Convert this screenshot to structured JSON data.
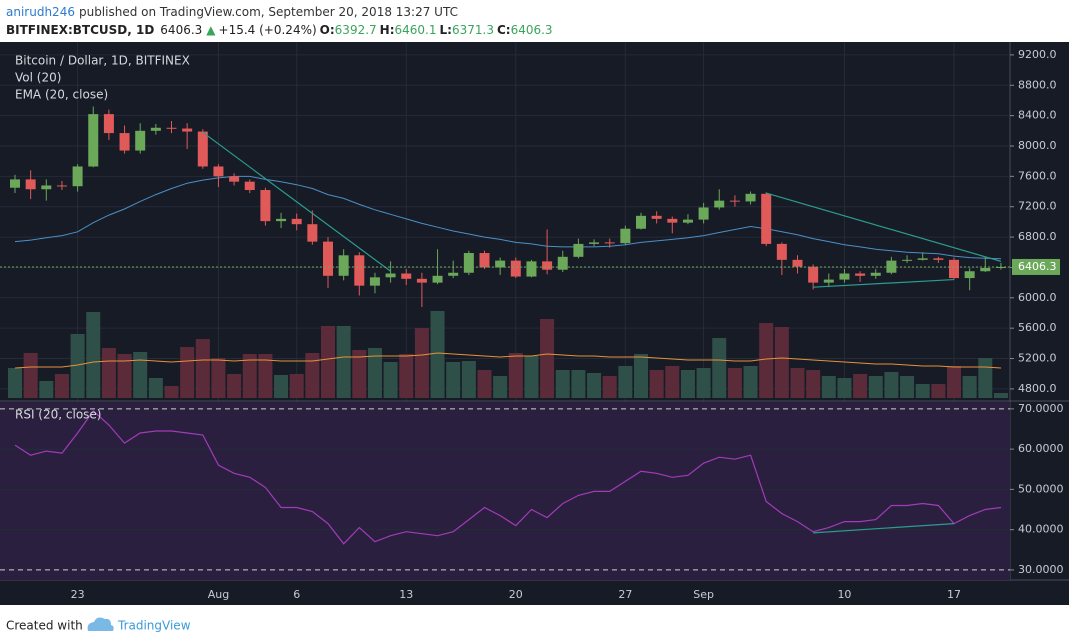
{
  "header": {
    "author": "anirudh246",
    "published": "published on TradingView.com, September 20, 2018 13:27 UTC",
    "symbol": "BITFINEX:BTCUSD, 1D",
    "last": "6406.3",
    "arrow": "▲",
    "change": "+15.4 (+0.24%)",
    "ohlc": [
      {
        "label": "O:",
        "value": "6392.7"
      },
      {
        "label": "H:",
        "value": "6460.1"
      },
      {
        "label": "L:",
        "value": "6371.3"
      },
      {
        "label": "C:",
        "value": "6406.3"
      }
    ]
  },
  "footer": {
    "created": "Created with",
    "brand": "TradingView"
  },
  "chart_data": [
    {
      "type": "candlestick",
      "title": "Bitcoin / Dollar, 1D, BITFINEX",
      "categories": [
        null,
        null,
        null,
        null,
        "23",
        null,
        null,
        null,
        null,
        null,
        null,
        null,
        null,
        "Aug",
        null,
        null,
        null,
        null,
        "6",
        null,
        null,
        null,
        null,
        null,
        null,
        "13",
        null,
        null,
        null,
        null,
        null,
        null,
        "20",
        null,
        null,
        null,
        null,
        null,
        null,
        "27",
        null,
        null,
        null,
        null,
        "Sep",
        null,
        null,
        null,
        null,
        null,
        null,
        null,
        null,
        "10",
        null,
        null,
        null,
        null,
        null,
        null,
        "17",
        null,
        null,
        null
      ],
      "open": [
        7450,
        7560,
        7430,
        7480,
        7470,
        7730,
        8420,
        8170,
        7940,
        8200,
        8240,
        8230,
        8190,
        7730,
        7600,
        7530,
        7420,
        7010,
        7040,
        6970,
        6740,
        6290,
        6560,
        6160,
        6270,
        6320,
        6250,
        6200,
        6290,
        6330,
        6590,
        6400,
        6490,
        6280,
        6480,
        6370,
        6540,
        6710,
        6730,
        6720,
        6910,
        7080,
        7040,
        6990,
        7030,
        7190,
        7280,
        7270,
        7370,
        6710,
        6500,
        6410,
        6200,
        6240,
        6320,
        6290,
        6330,
        6490,
        6500,
        6520,
        6500,
        6260,
        6350,
        6392.7
      ],
      "high": [
        7620,
        7680,
        7560,
        7540,
        7760,
        8520,
        8480,
        8270,
        8300,
        8290,
        8330,
        8300,
        8220,
        7760,
        7640,
        7560,
        7450,
        7120,
        7110,
        7150,
        6800,
        6640,
        6600,
        6330,
        6480,
        6380,
        6330,
        6640,
        6490,
        6620,
        6620,
        6530,
        6530,
        6500,
        6900,
        6620,
        6780,
        6770,
        6780,
        6950,
        7120,
        7140,
        7070,
        7100,
        7250,
        7430,
        7350,
        7400,
        7390,
        6730,
        6560,
        6440,
        6320,
        6380,
        6350,
        6380,
        6540,
        6560,
        6600,
        6540,
        6530,
        6390,
        6540,
        6460.1
      ],
      "low": [
        7380,
        7300,
        7280,
        7420,
        7400,
        7720,
        8080,
        7900,
        7900,
        8150,
        8170,
        7960,
        7700,
        7460,
        7480,
        7380,
        6950,
        6920,
        6890,
        6700,
        6130,
        6230,
        6030,
        6060,
        6200,
        6170,
        5880,
        6180,
        6260,
        6300,
        6380,
        6300,
        6260,
        6270,
        6310,
        6340,
        6520,
        6680,
        6660,
        6700,
        6900,
        6980,
        6850,
        6970,
        6980,
        7160,
        7200,
        7230,
        6680,
        6300,
        6320,
        6110,
        6140,
        6200,
        6210,
        6250,
        6310,
        6460,
        6490,
        6460,
        6240,
        6100,
        6340,
        6371.3
      ],
      "close": [
        7560,
        7430,
        7480,
        7470,
        7730,
        8420,
        8170,
        7940,
        8200,
        8240,
        8230,
        8190,
        7730,
        7600,
        7530,
        7420,
        7010,
        7040,
        6970,
        6740,
        6290,
        6560,
        6160,
        6270,
        6320,
        6250,
        6200,
        6290,
        6330,
        6590,
        6400,
        6490,
        6280,
        6480,
        6370,
        6540,
        6710,
        6730,
        6720,
        6910,
        7080,
        7040,
        6990,
        7030,
        7190,
        7280,
        7270,
        7370,
        6710,
        6500,
        6410,
        6200,
        6240,
        6320,
        6290,
        6330,
        6490,
        6500,
        6520,
        6500,
        6260,
        6350,
        6392.7,
        6406.3
      ],
      "up_color": "#6ba85a",
      "down_color": "#e05a5a",
      "ylim": [
        4680,
        9370
      ],
      "yticks": [
        {
          "value": 9200,
          "label": "9200.0"
        },
        {
          "value": 8800,
          "label": "8800.0"
        },
        {
          "value": 8400,
          "label": "8400.0"
        },
        {
          "value": 8000,
          "label": "8000.0"
        },
        {
          "value": 7600,
          "label": "7600.0"
        },
        {
          "value": 7200,
          "label": "7200.0"
        },
        {
          "value": 6800,
          "label": "6800.0"
        },
        {
          "value": 6400,
          "label": "6400.0"
        },
        {
          "value": 6000,
          "label": "6000.0"
        },
        {
          "value": 5600,
          "label": "5600.0"
        },
        {
          "value": 5200,
          "label": "5200.0"
        },
        {
          "value": 4800,
          "label": "4800.0"
        }
      ],
      "grid": true,
      "volume": {
        "name": "Vol (20)",
        "vlim": [
          0,
          100
        ],
        "up_color": "#2f5049",
        "down_color": "#5c2b3a",
        "values": [
          30,
          45,
          17,
          24,
          64,
          86,
          50,
          44,
          46,
          20,
          12,
          51,
          59,
          40,
          24,
          44,
          44,
          23,
          24,
          45,
          72,
          72,
          48,
          50,
          36,
          44,
          70,
          87,
          36,
          37,
          28,
          22,
          45,
          42,
          79,
          28,
          28,
          25,
          22,
          32,
          44,
          28,
          32,
          28,
          30,
          60,
          30,
          32,
          75,
          71,
          30,
          28,
          22,
          20,
          24,
          22,
          26,
          22,
          14,
          14,
          32,
          22,
          40,
          5
        ],
        "ma_color": "#e8913a",
        "ma": [
          30,
          31,
          31,
          31,
          33,
          36,
          37,
          37,
          38,
          37,
          36,
          37,
          38,
          38,
          37,
          38,
          38,
          37,
          37,
          37,
          39,
          41,
          41,
          42,
          42,
          42,
          43,
          45,
          44,
          43,
          42,
          41,
          42,
          42,
          44,
          43,
          42,
          42,
          41,
          41,
          41,
          40,
          39,
          38,
          38,
          38,
          37,
          37,
          39,
          40,
          39,
          38,
          37,
          36,
          35,
          34,
          34,
          33,
          32,
          32,
          31,
          31,
          31,
          30
        ]
      },
      "ema": {
        "name": "EMA (20, close)",
        "color": "#4a90c8",
        "values": [
          6740,
          6760,
          6790,
          6820,
          6870,
          6990,
          7090,
          7170,
          7270,
          7360,
          7440,
          7510,
          7550,
          7580,
          7600,
          7600,
          7560,
          7530,
          7490,
          7440,
          7360,
          7310,
          7230,
          7160,
          7100,
          7040,
          6980,
          6930,
          6880,
          6840,
          6800,
          6770,
          6730,
          6710,
          6680,
          6670,
          6670,
          6670,
          6680,
          6700,
          6730,
          6750,
          6770,
          6790,
          6820,
          6860,
          6900,
          6940,
          6910,
          6870,
          6830,
          6780,
          6740,
          6700,
          6670,
          6640,
          6620,
          6600,
          6590,
          6580,
          6550,
          6530,
          6520,
          6515
        ]
      },
      "trendline_color": "#2a9d8f",
      "trendlines": [
        {
          "from": [
            12,
            8180
          ],
          "to": [
            24,
            6350
          ]
        },
        {
          "from": [
            48,
            7380
          ],
          "to": [
            63,
            6480
          ]
        },
        {
          "from": [
            51,
            6140
          ],
          "to": [
            60,
            6240
          ]
        }
      ],
      "last_line_color": "#6ba85a"
    },
    {
      "type": "line",
      "series": [
        {
          "name": "RSI (20, close)",
          "color": "#a23bb8",
          "values": [
            61,
            58.5,
            59.5,
            59,
            64,
            69.5,
            66,
            61.5,
            64,
            64.5,
            64.5,
            64,
            63.5,
            56,
            54,
            53,
            50.5,
            45.5,
            45.5,
            44.5,
            41.5,
            36.5,
            40.5,
            37,
            38.5,
            39.5,
            39,
            38.5,
            39.5,
            42.5,
            45.5,
            43.5,
            41,
            45,
            43,
            46.5,
            48.5,
            49.5,
            49.5,
            52,
            54.5,
            54,
            53,
            53.5,
            56.5,
            58,
            57.5,
            58.5,
            47,
            44,
            42,
            39.5,
            40.5,
            42,
            42,
            42.5,
            46,
            46,
            46.5,
            46,
            41.5,
            43.5,
            45,
            45.5
          ]
        }
      ],
      "ylim": [
        27.5,
        71.7
      ],
      "yticks": [
        {
          "value": 70,
          "label": "70.0000"
        },
        {
          "value": 60,
          "label": "60.0000"
        },
        {
          "value": 50,
          "label": "50.0000"
        },
        {
          "value": 40,
          "label": "40.0000"
        },
        {
          "value": 30,
          "label": "30.0000"
        }
      ],
      "levels": [
        70,
        30
      ],
      "background": "#2a1f3e",
      "trendline_color": "#2a9d8f",
      "trendlines": [
        {
          "from": [
            51,
            39.2
          ],
          "to": [
            60,
            41.5
          ]
        }
      ]
    }
  ]
}
